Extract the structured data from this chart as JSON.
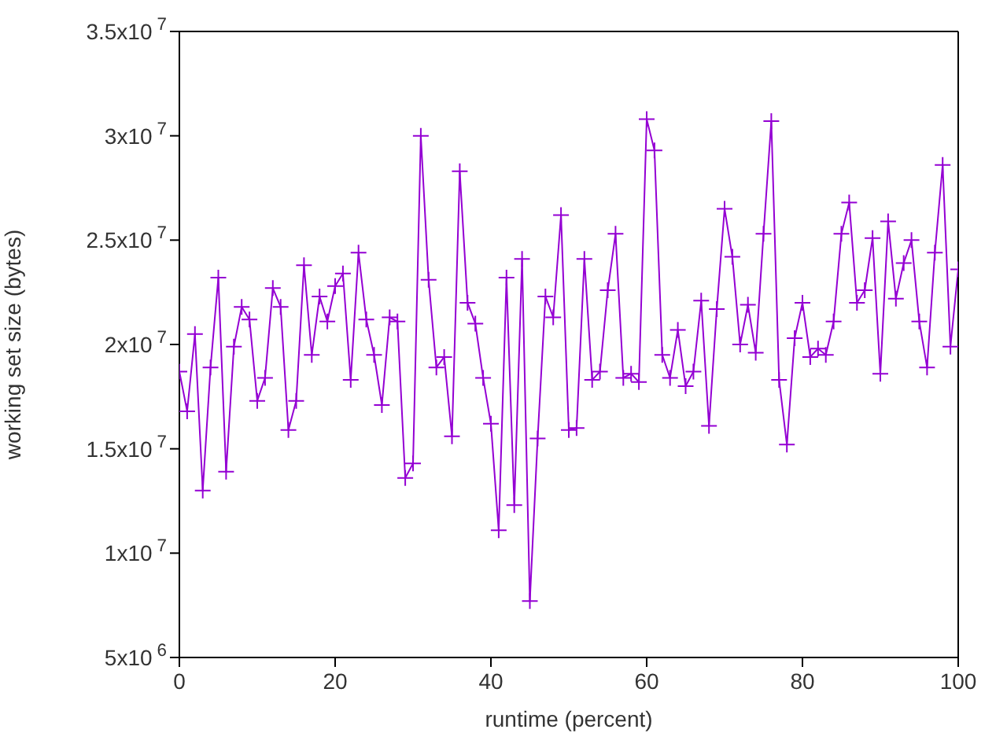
{
  "chart_data": {
    "type": "line",
    "xlabel": "runtime (percent)",
    "ylabel": "working set size (bytes)",
    "x": [
      0,
      1,
      2,
      3,
      4,
      5,
      6,
      7,
      8,
      9,
      10,
      11,
      12,
      13,
      14,
      15,
      16,
      17,
      18,
      19,
      20,
      21,
      22,
      23,
      24,
      25,
      26,
      27,
      28,
      29,
      30,
      31,
      32,
      33,
      34,
      35,
      36,
      37,
      38,
      39,
      40,
      41,
      42,
      43,
      44,
      45,
      46,
      47,
      48,
      49,
      50,
      51,
      52,
      53,
      54,
      55,
      56,
      57,
      58,
      59,
      60,
      61,
      62,
      63,
      64,
      65,
      66,
      67,
      68,
      69,
      70,
      71,
      72,
      73,
      74,
      75,
      76,
      77,
      78,
      79,
      80,
      81,
      82,
      83,
      84,
      85,
      86,
      87,
      88,
      89,
      90,
      91,
      92,
      93,
      94,
      95,
      96,
      97,
      98,
      99,
      100
    ],
    "series": [
      {
        "color": "#9400d3",
        "values": [
          18700000,
          16800000,
          20500000,
          13000000,
          18900000,
          23200000,
          13900000,
          19900000,
          21800000,
          21200000,
          17300000,
          18400000,
          22700000,
          21800000,
          15900000,
          17300000,
          23800000,
          19500000,
          22300000,
          21100000,
          22800000,
          23400000,
          18300000,
          24400000,
          21200000,
          19500000,
          17100000,
          21300000,
          21100000,
          13600000,
          14300000,
          30000000,
          23100000,
          18900000,
          19400000,
          15600000,
          28300000,
          22000000,
          21000000,
          18400000,
          16200000,
          11100000,
          23200000,
          12300000,
          24100000,
          7700000,
          15500000,
          22300000,
          21300000,
          26200000,
          15900000,
          16000000,
          24100000,
          18300000,
          18700000,
          22600000,
          25300000,
          18400000,
          18600000,
          18200000,
          30800000,
          29300000,
          19500000,
          18400000,
          20700000,
          18000000,
          18700000,
          22100000,
          16100000,
          21700000,
          26500000,
          24200000,
          20000000,
          21900000,
          19600000,
          25300000,
          30700000,
          18300000,
          15200000,
          20300000,
          22000000,
          19400000,
          19800000,
          19500000,
          21100000,
          25300000,
          26800000,
          22000000,
          22600000,
          25100000,
          18600000,
          25900000,
          22200000,
          23900000,
          25000000,
          21100000,
          18900000,
          24400000,
          28600000,
          19900000,
          23600000
        ]
      }
    ],
    "xlim": [
      0,
      100
    ],
    "xticks": [
      0,
      20,
      40,
      60,
      80,
      100
    ],
    "ylim": [
      5000000,
      35000000
    ],
    "yticks": [
      {
        "value": 5000000,
        "label": "5x10$^{6}$"
      },
      {
        "value": 10000000,
        "label": "1x10$^{7}$"
      },
      {
        "value": 15000000,
        "label": "1.5x10$^{7}$"
      },
      {
        "value": 20000000,
        "label": "2x10$^{7}$"
      },
      {
        "value": 25000000,
        "label": "2.5x10$^{7}$"
      },
      {
        "value": 30000000,
        "label": "3x10$^{7}$"
      },
      {
        "value": 35000000,
        "label": "3.5x10$^{7}$"
      }
    ],
    "marker": "cross",
    "line_style": "solid",
    "grid": false,
    "legend": false
  }
}
